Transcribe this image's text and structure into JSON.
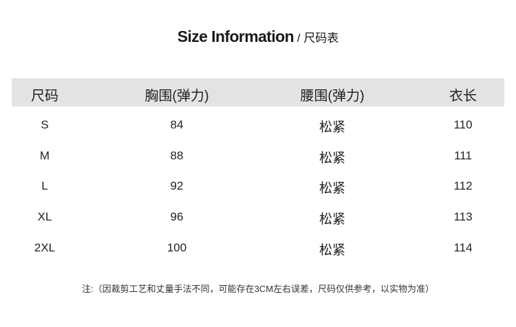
{
  "title": {
    "en": "Size Information",
    "separator": " / ",
    "zh": "尺码表"
  },
  "table": {
    "headers": [
      "尺码",
      "胸围(弹力)",
      "腰围(弹力)",
      "衣长"
    ],
    "header_bg": "#e3e3e3",
    "rows": [
      [
        "S",
        "84",
        "松紧",
        "110"
      ],
      [
        "M",
        "88",
        "松紧",
        "111"
      ],
      [
        "L",
        "92",
        "松紧",
        "112"
      ],
      [
        "XL",
        "96",
        "松紧",
        "113"
      ],
      [
        "2XL",
        "100",
        "松紧",
        "114"
      ]
    ]
  },
  "note": "注:（因裁剪工艺和丈量手法不同，可能存在3CM左右误差，尺码仅供参考，以实物为准）"
}
